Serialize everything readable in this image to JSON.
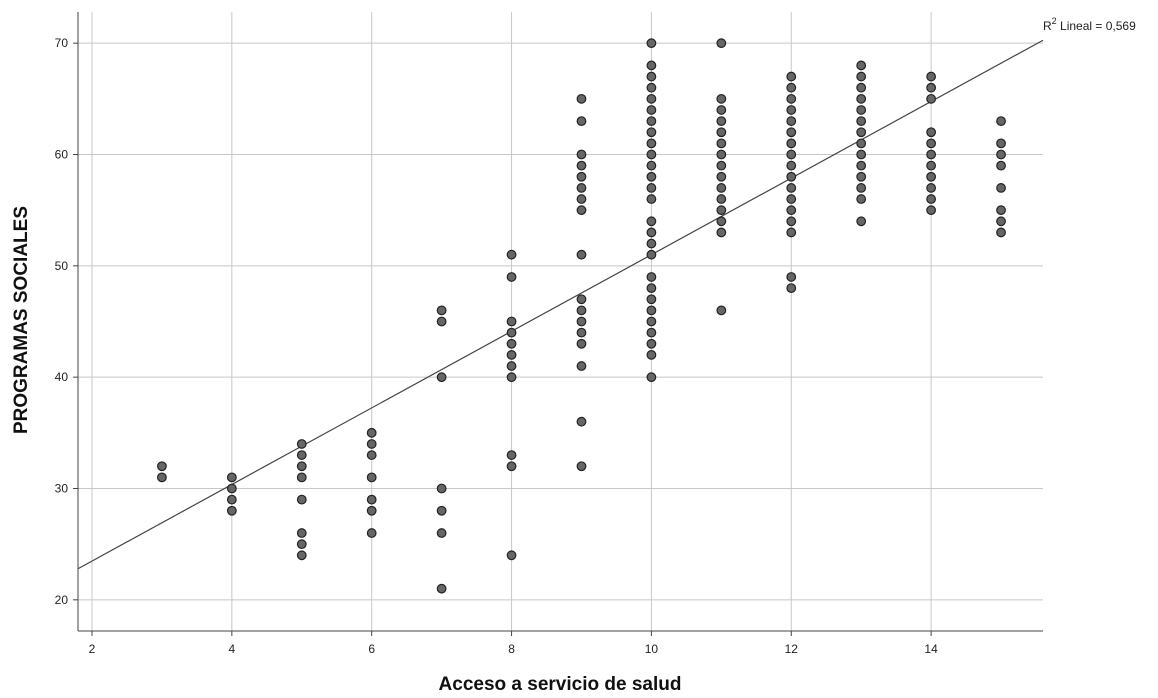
{
  "chart_data": {
    "type": "scatter",
    "title": "",
    "xlabel": "Acceso a servicio de salud",
    "ylabel": "PROGRAMAS SOCIALES",
    "xlim": [
      1.8,
      15.6
    ],
    "ylim": [
      17.2,
      72.8
    ],
    "xticks": [
      2,
      4,
      6,
      8,
      10,
      12,
      14
    ],
    "yticks": [
      20,
      30,
      40,
      50,
      60,
      70
    ],
    "xtick_labels": [
      "2",
      "4",
      "6",
      "8",
      "10",
      "12",
      "14"
    ],
    "ytick_labels": [
      "20",
      "30",
      "40",
      "50",
      "60",
      "70"
    ],
    "grid": true,
    "point_color": "#666666",
    "point_edge_color": "#222222",
    "fit_line": {
      "type": "linear",
      "intercept": 16.6,
      "slope": 3.44,
      "color": "#444444",
      "label": {
        "base": "R",
        "superscript": "2",
        "text": " Lineal = 0,569"
      }
    },
    "series": [
      {
        "points": [
          [
            3,
            32
          ],
          [
            3,
            31
          ],
          [
            4,
            31
          ],
          [
            4,
            30
          ],
          [
            4,
            29
          ],
          [
            4,
            28
          ],
          [
            5,
            34
          ],
          [
            5,
            33
          ],
          [
            5,
            32
          ],
          [
            5,
            31
          ],
          [
            5,
            29
          ],
          [
            5,
            26
          ],
          [
            5,
            25
          ],
          [
            5,
            24
          ],
          [
            6,
            35
          ],
          [
            6,
            34
          ],
          [
            6,
            33
          ],
          [
            6,
            31
          ],
          [
            6,
            29
          ],
          [
            6,
            28
          ],
          [
            6,
            26
          ],
          [
            7,
            46
          ],
          [
            7,
            45
          ],
          [
            7,
            40
          ],
          [
            7,
            30
          ],
          [
            7,
            28
          ],
          [
            7,
            26
          ],
          [
            7,
            21
          ],
          [
            8,
            51
          ],
          [
            8,
            49
          ],
          [
            8,
            45
          ],
          [
            8,
            44
          ],
          [
            8,
            43
          ],
          [
            8,
            42
          ],
          [
            8,
            41
          ],
          [
            8,
            40
          ],
          [
            8,
            33
          ],
          [
            8,
            32
          ],
          [
            8,
            24
          ],
          [
            9,
            65
          ],
          [
            9,
            63
          ],
          [
            9,
            60
          ],
          [
            9,
            59
          ],
          [
            9,
            58
          ],
          [
            9,
            57
          ],
          [
            9,
            56
          ],
          [
            9,
            55
          ],
          [
            9,
            51
          ],
          [
            9,
            47
          ],
          [
            9,
            46
          ],
          [
            9,
            45
          ],
          [
            9,
            44
          ],
          [
            9,
            43
          ],
          [
            9,
            41
          ],
          [
            9,
            36
          ],
          [
            9,
            32
          ],
          [
            10,
            70
          ],
          [
            10,
            68
          ],
          [
            10,
            67
          ],
          [
            10,
            66
          ],
          [
            10,
            65
          ],
          [
            10,
            64
          ],
          [
            10,
            63
          ],
          [
            10,
            62
          ],
          [
            10,
            61
          ],
          [
            10,
            60
          ],
          [
            10,
            59
          ],
          [
            10,
            58
          ],
          [
            10,
            57
          ],
          [
            10,
            56
          ],
          [
            10,
            54
          ],
          [
            10,
            53
          ],
          [
            10,
            52
          ],
          [
            10,
            51
          ],
          [
            10,
            49
          ],
          [
            10,
            48
          ],
          [
            10,
            47
          ],
          [
            10,
            46
          ],
          [
            10,
            45
          ],
          [
            10,
            44
          ],
          [
            10,
            43
          ],
          [
            10,
            42
          ],
          [
            10,
            40
          ],
          [
            11,
            70
          ],
          [
            11,
            65
          ],
          [
            11,
            64
          ],
          [
            11,
            63
          ],
          [
            11,
            62
          ],
          [
            11,
            61
          ],
          [
            11,
            60
          ],
          [
            11,
            59
          ],
          [
            11,
            58
          ],
          [
            11,
            57
          ],
          [
            11,
            56
          ],
          [
            11,
            55
          ],
          [
            11,
            54
          ],
          [
            11,
            53
          ],
          [
            11,
            46
          ],
          [
            12,
            67
          ],
          [
            12,
            66
          ],
          [
            12,
            65
          ],
          [
            12,
            64
          ],
          [
            12,
            63
          ],
          [
            12,
            62
          ],
          [
            12,
            61
          ],
          [
            12,
            60
          ],
          [
            12,
            59
          ],
          [
            12,
            58
          ],
          [
            12,
            57
          ],
          [
            12,
            56
          ],
          [
            12,
            55
          ],
          [
            12,
            54
          ],
          [
            12,
            53
          ],
          [
            12,
            49
          ],
          [
            12,
            48
          ],
          [
            13,
            68
          ],
          [
            13,
            67
          ],
          [
            13,
            66
          ],
          [
            13,
            65
          ],
          [
            13,
            64
          ],
          [
            13,
            63
          ],
          [
            13,
            62
          ],
          [
            13,
            61
          ],
          [
            13,
            60
          ],
          [
            13,
            59
          ],
          [
            13,
            58
          ],
          [
            13,
            57
          ],
          [
            13,
            56
          ],
          [
            13,
            54
          ],
          [
            14,
            67
          ],
          [
            14,
            66
          ],
          [
            14,
            65
          ],
          [
            14,
            62
          ],
          [
            14,
            61
          ],
          [
            14,
            60
          ],
          [
            14,
            59
          ],
          [
            14,
            58
          ],
          [
            14,
            57
          ],
          [
            14,
            56
          ],
          [
            14,
            55
          ],
          [
            15,
            63
          ],
          [
            15,
            61
          ],
          [
            15,
            60
          ],
          [
            15,
            59
          ],
          [
            15,
            57
          ],
          [
            15,
            55
          ],
          [
            15,
            54
          ],
          [
            15,
            53
          ]
        ]
      }
    ]
  }
}
